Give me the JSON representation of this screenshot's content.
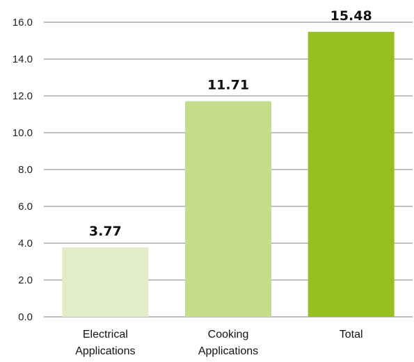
{
  "chart_data": {
    "type": "bar",
    "categories": [
      [
        "Electrical",
        "Applications"
      ],
      [
        "Cooking",
        "Applications"
      ],
      [
        "Total"
      ]
    ],
    "values": [
      3.77,
      11.71,
      15.48
    ],
    "data_labels": [
      "3.77",
      "11.71",
      "15.48"
    ],
    "bar_colors": [
      "#e2edc8",
      "#c5dc8a",
      "#94c11f"
    ],
    "ylim": [
      0,
      16
    ],
    "yticks": [
      "0.0",
      "2.0",
      "4.0",
      "6.0",
      "8.0",
      "10.0",
      "12.0",
      "14.0",
      "16.0"
    ],
    "grid": true,
    "legend": "none",
    "title": "",
    "xlabel": "",
    "ylabel": ""
  }
}
